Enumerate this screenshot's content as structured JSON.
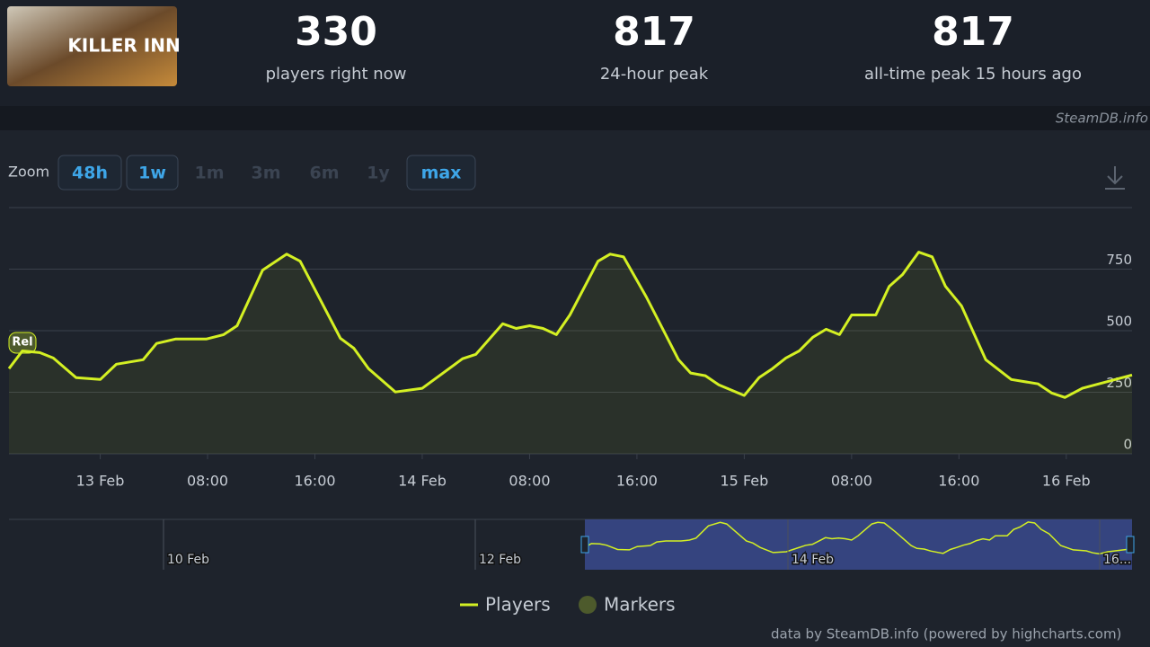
{
  "header": {
    "logo_text": "KILLER INN",
    "stats": [
      {
        "value": "330",
        "label": "players right now"
      },
      {
        "value": "817",
        "label": "24-hour peak"
      },
      {
        "value": "817",
        "label": "all-time peak 15 hours ago"
      }
    ]
  },
  "watermark": "SteamDB.info",
  "zoom": {
    "label": "Zoom",
    "buttons": [
      {
        "label": "48h",
        "state": "enabled"
      },
      {
        "label": "1w",
        "state": "enabled"
      },
      {
        "label": "1m",
        "state": "disabled"
      },
      {
        "label": "3m",
        "state": "disabled"
      },
      {
        "label": "6m",
        "state": "disabled"
      },
      {
        "label": "1y",
        "state": "disabled"
      },
      {
        "label": "max",
        "state": "enabled"
      }
    ]
  },
  "chart_data": {
    "type": "line",
    "x": [
      -6.8,
      -5.8,
      -4.5,
      -3.5,
      -1.8,
      0,
      1.2,
      3.2,
      4.2,
      5.6,
      7.9,
      9.2,
      10.2,
      12.1,
      13.9,
      14.9,
      17.9,
      18.9,
      20.0,
      22.0,
      24.0,
      27.0,
      28.0,
      30.0,
      31.0,
      32.0,
      33.0,
      34.0,
      35.0,
      37.1,
      38.0,
      39.0,
      40.7,
      43.1,
      44.0,
      45.1,
      46.1,
      48.0,
      49.1,
      50.1,
      51.1,
      52.1,
      53.1,
      54.1,
      55.1,
      56.0,
      57.8,
      58.8,
      59.8,
      61.0,
      62.0,
      63.0,
      64.2,
      66.0,
      67.9,
      69.9,
      70.9,
      71.9,
      73.2,
      74.9,
      76.9
    ],
    "series": [
      {
        "name": "Players",
        "color": "#d4f023",
        "values": [
          346,
          418,
          411,
          389,
          309,
          302,
          364,
          382,
          448,
          466,
          466,
          484,
          520,
          746,
          811,
          782,
          469,
          429,
          346,
          251,
          266,
          386,
          404,
          528,
          509,
          520,
          509,
          484,
          564,
          782,
          811,
          800,
          637,
          382,
          328,
          317,
          280,
          237,
          309,
          346,
          389,
          418,
          473,
          506,
          484,
          564,
          564,
          680,
          728,
          819,
          800,
          680,
          600,
          382,
          302,
          284,
          247,
          229,
          266,
          291,
          320
        ]
      }
    ],
    "xlim": [
      -6.8,
      76.9
    ],
    "xticks": [
      {
        "value": 0,
        "label": "13 Feb"
      },
      {
        "value": 8,
        "label": "08:00"
      },
      {
        "value": 16,
        "label": "16:00"
      },
      {
        "value": 24,
        "label": "14 Feb"
      },
      {
        "value": 32,
        "label": "08:00"
      },
      {
        "value": 40,
        "label": "16:00"
      },
      {
        "value": 48,
        "label": "15 Feb"
      },
      {
        "value": 56,
        "label": "08:00"
      },
      {
        "value": 64,
        "label": "16:00"
      },
      {
        "value": 72,
        "label": "16 Feb"
      }
    ],
    "ylim": [
      0,
      1000
    ],
    "yticks": [
      0,
      250,
      500,
      750
    ],
    "grid": true,
    "markers": {
      "name": "Markers",
      "color": "#4d5a2c"
    },
    "annotations": [
      {
        "x": -5.8,
        "text": "Rel"
      }
    ]
  },
  "navigator": {
    "labels": [
      "10 Feb",
      "12 Feb",
      "14 Feb",
      "16..."
    ]
  },
  "footer": "data by SteamDB.info (powered by highcharts.com)"
}
